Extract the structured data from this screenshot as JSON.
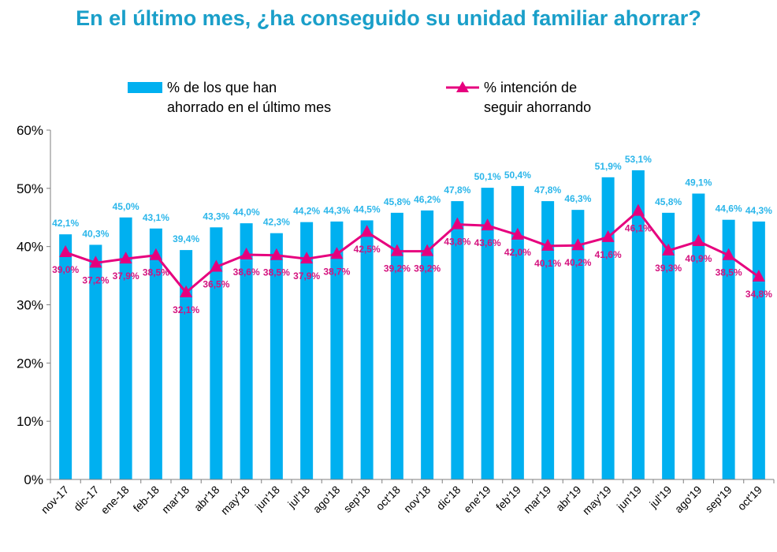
{
  "chart_data": {
    "type": "bar",
    "title": "En el último mes, ¿ha conseguido su unidad familiar ahorrar?",
    "categories": [
      "nov-17",
      "dic-17",
      "ene-18",
      "feb-18",
      "mar'18",
      "abr'18",
      "may'18",
      "jun'18",
      "jul'18",
      "ago'18",
      "sep'18",
      "oct'18",
      "nov'18",
      "dic'18",
      "ene'19",
      "feb'19",
      "mar'19",
      "abr'19",
      "may'19",
      "jun'19",
      "jul'19",
      "ago'19",
      "sep'19",
      "oct'19"
    ],
    "series": [
      {
        "name_lines": [
          "% de los que han",
          "ahorrado en el último mes"
        ],
        "type": "bar",
        "color": "#00b0f0",
        "values": [
          42.1,
          40.3,
          45.0,
          43.1,
          39.4,
          43.3,
          44.0,
          42.3,
          44.2,
          44.3,
          44.5,
          45.8,
          46.2,
          47.8,
          50.1,
          50.4,
          47.8,
          46.3,
          51.9,
          53.1,
          45.8,
          49.1,
          44.6,
          44.3
        ],
        "labels": [
          "42,1%",
          "40,3%",
          "45,0%",
          "43,1%",
          "39,4%",
          "43,3%",
          "44,0%",
          "42,3%",
          "44,2%",
          "44,3%",
          "44,5%",
          "45,8%",
          "46,2%",
          "47,8%",
          "50,1%",
          "50,4%",
          "47,8%",
          "46,3%",
          "51,9%",
          "53,1%",
          "45,8%",
          "49,1%",
          "44,6%",
          "44,3%"
        ]
      },
      {
        "name_lines": [
          "% intención de",
          "seguir ahorrando"
        ],
        "type": "line",
        "color": "#e6007e",
        "marker": "triangle",
        "values": [
          39.0,
          37.2,
          37.9,
          38.5,
          32.1,
          36.5,
          38.6,
          38.5,
          37.9,
          38.7,
          42.5,
          39.2,
          39.2,
          43.8,
          43.6,
          42.0,
          40.1,
          40.2,
          41.6,
          46.1,
          39.3,
          40.9,
          38.5,
          34.8
        ],
        "labels": [
          "39,0%",
          "37,2%",
          "37,9%",
          "38,5%",
          "32,1%",
          "36,5%",
          "38,6%",
          "38,5%",
          "37,9%",
          "38,7%",
          "42,5%",
          "39,2%",
          "39,2%",
          "43,8%",
          "43,6%",
          "42,0%",
          "40,1%",
          "40,2%",
          "41,6%",
          "46,1%",
          "39,3%",
          "40,9%",
          "38,5%",
          "34,8%"
        ]
      }
    ],
    "ylim": [
      0,
      60
    ],
    "yticks": [
      "0%",
      "10%",
      "20%",
      "30%",
      "40%",
      "50%",
      "60%"
    ],
    "grid": false,
    "legend_position": "top"
  }
}
